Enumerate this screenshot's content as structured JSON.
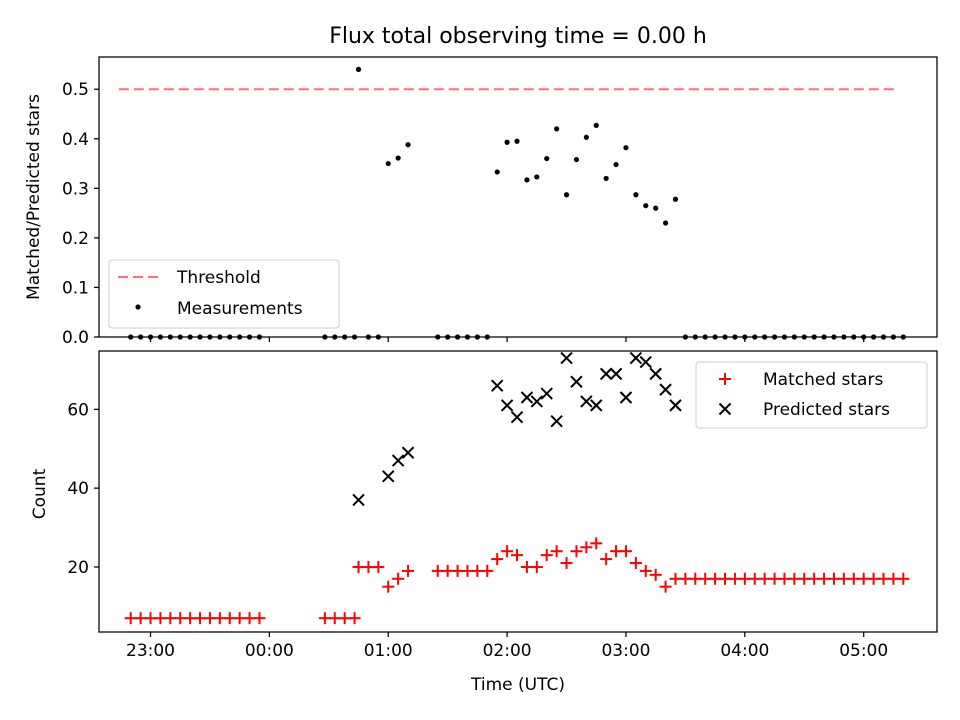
{
  "title": "Flux total observing time = 0.00 h",
  "chart_data": [
    {
      "type": "scatter",
      "ylabel": "Matched/Predicted stars",
      "xlim": [
        "22:34",
        "05:37"
      ],
      "ylim": [
        0,
        0.565
      ],
      "yticks": [
        0.0,
        0.1,
        0.2,
        0.3,
        0.4,
        0.5
      ],
      "ytick_labels": [
        "0.0",
        "0.1",
        "0.2",
        "0.3",
        "0.4",
        "0.5"
      ],
      "legend_position": "lower-left",
      "threshold": {
        "name": "Threshold",
        "value": 0.5,
        "x_range": [
          "22:44",
          "05:17"
        ],
        "color": "#ff7070",
        "style": "dashed"
      },
      "series": [
        {
          "name": "Measurements",
          "color": "#000000",
          "marker": "dot",
          "points": [
            [
              "22:50",
              0
            ],
            [
              "22:55",
              0
            ],
            [
              "23:00",
              0
            ],
            [
              "23:05",
              0
            ],
            [
              "23:10",
              0
            ],
            [
              "23:15",
              0
            ],
            [
              "23:20",
              0
            ],
            [
              "23:25",
              0
            ],
            [
              "23:30",
              0
            ],
            [
              "23:35",
              0
            ],
            [
              "23:40",
              0
            ],
            [
              "23:45",
              0
            ],
            [
              "23:50",
              0
            ],
            [
              "23:55",
              0
            ],
            [
              "00:28",
              0
            ],
            [
              "00:33",
              0
            ],
            [
              "00:38",
              0
            ],
            [
              "00:43",
              0
            ],
            [
              "00:45",
              0.54
            ],
            [
              "00:50",
              0
            ],
            [
              "00:55",
              0
            ],
            [
              "01:00",
              0.35
            ],
            [
              "01:05",
              0.361
            ],
            [
              "01:10",
              0.388
            ],
            [
              "01:25",
              0
            ],
            [
              "01:30",
              0
            ],
            [
              "01:35",
              0
            ],
            [
              "01:40",
              0
            ],
            [
              "01:45",
              0
            ],
            [
              "01:50",
              0
            ],
            [
              "01:55",
              0.333
            ],
            [
              "02:00",
              0.393
            ],
            [
              "02:05",
              0.395
            ],
            [
              "02:10",
              0.317
            ],
            [
              "02:15",
              0.323
            ],
            [
              "02:20",
              0.36
            ],
            [
              "02:25",
              0.42
            ],
            [
              "02:30",
              0.287
            ],
            [
              "02:35",
              0.358
            ],
            [
              "02:40",
              0.403
            ],
            [
              "02:45",
              0.427
            ],
            [
              "02:50",
              0.32
            ],
            [
              "02:55",
              0.348
            ],
            [
              "03:00",
              0.382
            ],
            [
              "03:05",
              0.287
            ],
            [
              "03:10",
              0.265
            ],
            [
              "03:15",
              0.26
            ],
            [
              "03:20",
              0.23
            ],
            [
              "03:25",
              0.278
            ],
            [
              "03:30",
              0
            ],
            [
              "03:35",
              0
            ],
            [
              "03:40",
              0
            ],
            [
              "03:45",
              0
            ],
            [
              "03:50",
              0
            ],
            [
              "03:55",
              0
            ],
            [
              "04:00",
              0
            ],
            [
              "04:05",
              0
            ],
            [
              "04:10",
              0
            ],
            [
              "04:15",
              0
            ],
            [
              "04:20",
              0
            ],
            [
              "04:25",
              0
            ],
            [
              "04:30",
              0
            ],
            [
              "04:35",
              0
            ],
            [
              "04:40",
              0
            ],
            [
              "04:45",
              0
            ],
            [
              "04:50",
              0
            ],
            [
              "04:55",
              0
            ],
            [
              "05:00",
              0
            ],
            [
              "05:05",
              0
            ],
            [
              "05:10",
              0
            ],
            [
              "05:15",
              0
            ],
            [
              "05:20",
              0
            ]
          ]
        }
      ]
    },
    {
      "type": "scatter",
      "xlabel": "Time (UTC)",
      "ylabel": "Count",
      "xlim": [
        "22:34",
        "05:37"
      ],
      "ylim": [
        3.5,
        74.8
      ],
      "xticks": [
        "23:00",
        "00:00",
        "01:00",
        "02:00",
        "03:00",
        "04:00",
        "05:00"
      ],
      "yticks": [
        20,
        40,
        60
      ],
      "ytick_labels": [
        "20",
        "40",
        "60"
      ],
      "legend_position": "upper-right",
      "series": [
        {
          "name": "Matched stars",
          "color": "#ff0000",
          "marker": "plus",
          "points": [
            [
              "22:50",
              7
            ],
            [
              "22:55",
              7
            ],
            [
              "23:00",
              7
            ],
            [
              "23:05",
              7
            ],
            [
              "23:10",
              7
            ],
            [
              "23:15",
              7
            ],
            [
              "23:20",
              7
            ],
            [
              "23:25",
              7
            ],
            [
              "23:30",
              7
            ],
            [
              "23:35",
              7
            ],
            [
              "23:40",
              7
            ],
            [
              "23:45",
              7
            ],
            [
              "23:50",
              7
            ],
            [
              "23:55",
              7
            ],
            [
              "00:28",
              7
            ],
            [
              "00:33",
              7
            ],
            [
              "00:38",
              7
            ],
            [
              "00:43",
              7
            ],
            [
              "00:45",
              20
            ],
            [
              "00:50",
              20
            ],
            [
              "00:55",
              20
            ],
            [
              "01:00",
              15
            ],
            [
              "01:05",
              17
            ],
            [
              "01:10",
              19
            ],
            [
              "01:25",
              19
            ],
            [
              "01:30",
              19
            ],
            [
              "01:35",
              19
            ],
            [
              "01:40",
              19
            ],
            [
              "01:45",
              19
            ],
            [
              "01:50",
              19
            ],
            [
              "01:55",
              22
            ],
            [
              "02:00",
              24
            ],
            [
              "02:05",
              23
            ],
            [
              "02:10",
              20
            ],
            [
              "02:15",
              20
            ],
            [
              "02:20",
              23
            ],
            [
              "02:25",
              24
            ],
            [
              "02:30",
              21
            ],
            [
              "02:35",
              24
            ],
            [
              "02:40",
              25
            ],
            [
              "02:45",
              26
            ],
            [
              "02:50",
              22
            ],
            [
              "02:55",
              24
            ],
            [
              "03:00",
              24
            ],
            [
              "03:05",
              21
            ],
            [
              "03:10",
              19
            ],
            [
              "03:15",
              18
            ],
            [
              "03:20",
              15
            ],
            [
              "03:25",
              17
            ],
            [
              "03:30",
              17
            ],
            [
              "03:35",
              17
            ],
            [
              "03:40",
              17
            ],
            [
              "03:45",
              17
            ],
            [
              "03:50",
              17
            ],
            [
              "03:55",
              17
            ],
            [
              "04:00",
              17
            ],
            [
              "04:05",
              17
            ],
            [
              "04:10",
              17
            ],
            [
              "04:15",
              17
            ],
            [
              "04:20",
              17
            ],
            [
              "04:25",
              17
            ],
            [
              "04:30",
              17
            ],
            [
              "04:35",
              17
            ],
            [
              "04:40",
              17
            ],
            [
              "04:45",
              17
            ],
            [
              "04:50",
              17
            ],
            [
              "04:55",
              17
            ],
            [
              "05:00",
              17
            ],
            [
              "05:05",
              17
            ],
            [
              "05:10",
              17
            ],
            [
              "05:15",
              17
            ],
            [
              "05:20",
              17
            ]
          ]
        },
        {
          "name": "Predicted stars",
          "color": "#000000",
          "marker": "x",
          "points": [
            [
              "00:45",
              37
            ],
            [
              "01:00",
              43
            ],
            [
              "01:05",
              47
            ],
            [
              "01:10",
              49
            ],
            [
              "01:55",
              66
            ],
            [
              "02:00",
              61
            ],
            [
              "02:05",
              58
            ],
            [
              "02:10",
              63
            ],
            [
              "02:15",
              62
            ],
            [
              "02:20",
              64
            ],
            [
              "02:25",
              57
            ],
            [
              "02:30",
              73
            ],
            [
              "02:35",
              67
            ],
            [
              "02:40",
              62
            ],
            [
              "02:45",
              61
            ],
            [
              "02:50",
              69
            ],
            [
              "02:55",
              69
            ],
            [
              "03:00",
              63
            ],
            [
              "03:05",
              73
            ],
            [
              "03:10",
              72
            ],
            [
              "03:15",
              69
            ],
            [
              "03:20",
              65
            ],
            [
              "03:25",
              61
            ]
          ]
        }
      ]
    }
  ]
}
